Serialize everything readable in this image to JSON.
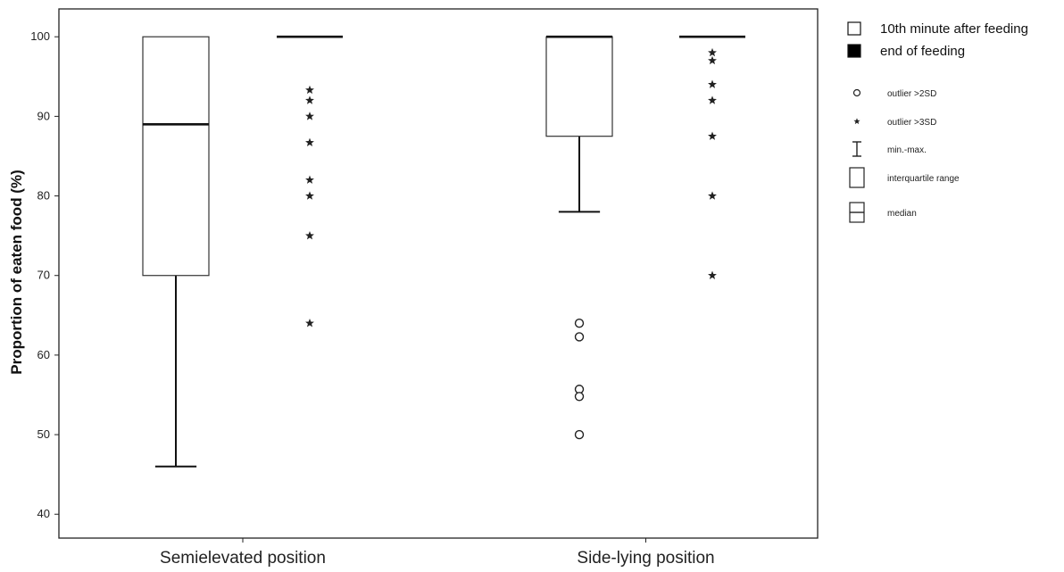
{
  "chart_data": {
    "type": "box",
    "ylabel": "Proportion of eaten food (%)",
    "xlabel": "",
    "ylim": [
      37,
      103.5
    ],
    "yticks": [
      40,
      50,
      60,
      70,
      80,
      90,
      100
    ],
    "grid": false,
    "legend_placement": "right",
    "categories": [
      "Semielevated position",
      "Side-lying position"
    ],
    "series": [
      {
        "name": "10th minute after feeding",
        "boxes": [
          {
            "category": "Semielevated position",
            "min": 46,
            "q1": 70,
            "median": 89,
            "q3": 100,
            "max": 100,
            "outliers_2sd": [],
            "outliers_3sd": []
          },
          {
            "category": "Side-lying position",
            "min": 78,
            "q1": 87.5,
            "median": 100,
            "q3": 100,
            "max": 100,
            "outliers_2sd": [
              64,
              62.3,
              55.7,
              54.8,
              50
            ],
            "outliers_3sd": []
          }
        ]
      },
      {
        "name": "end of feeding",
        "boxes": [
          {
            "category": "Semielevated position",
            "min": 100,
            "q1": 100,
            "median": 100,
            "q3": 100,
            "max": 100,
            "outliers_2sd": [],
            "outliers_3sd": [
              93.3,
              92,
              90,
              86.7,
              82,
              80,
              75,
              64
            ]
          },
          {
            "category": "Side-lying position",
            "min": 100,
            "q1": 100,
            "median": 100,
            "q3": 100,
            "max": 100,
            "outliers_2sd": [],
            "outliers_3sd": [
              98,
              97,
              94,
              92,
              87.5,
              80,
              70
            ]
          }
        ]
      }
    ],
    "legend": {
      "series_entries": [
        {
          "label": "10th minute after feeding",
          "fill": "#ffffff"
        },
        {
          "label": "end of feeding",
          "fill": "#000000"
        }
      ],
      "symbol_entries": [
        {
          "label": "outlier >2SD",
          "symbol": "circle"
        },
        {
          "label": "outlier >3SD",
          "symbol": "star"
        },
        {
          "label": "min.-max.",
          "symbol": "whisker"
        },
        {
          "label": "interquartile range",
          "symbol": "box"
        },
        {
          "label": "median",
          "symbol": "box-median"
        }
      ]
    }
  }
}
